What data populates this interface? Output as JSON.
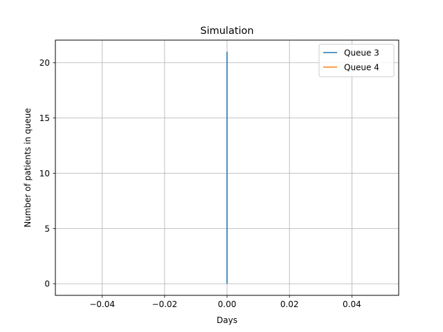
{
  "chart_data": {
    "type": "line",
    "title": "Simulation",
    "xlabel": "Days",
    "ylabel": "Number of patients in queue",
    "xlim": [
      -0.055,
      0.055
    ],
    "ylim": [
      -1.05,
      22.05
    ],
    "xticks": [
      -0.04,
      -0.02,
      0.0,
      0.02,
      0.04
    ],
    "xtick_labels": [
      "−0.04",
      "−0.02",
      "0.00",
      "0.02",
      "0.04"
    ],
    "yticks": [
      0,
      5,
      10,
      15,
      20
    ],
    "ytick_labels": [
      "0",
      "5",
      "10",
      "15",
      "20"
    ],
    "grid": true,
    "legend_position": "top-right",
    "series": [
      {
        "name": "Queue 3",
        "color": "#1f77b4",
        "x": [
          0.0,
          0.0
        ],
        "y": [
          0,
          21
        ]
      },
      {
        "name": "Queue 4",
        "color": "#ff7f0e",
        "x": [],
        "y": []
      }
    ]
  }
}
